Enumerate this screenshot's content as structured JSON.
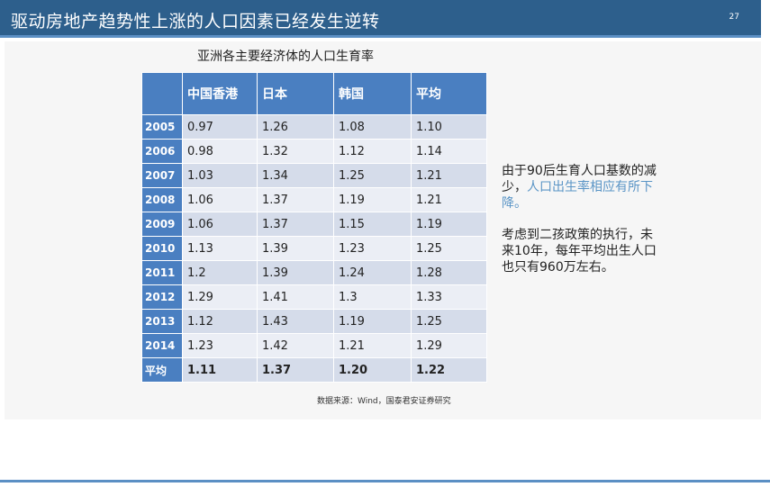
{
  "slide": {
    "title": "驱动房地产趋势性上涨的人口因素已经发生逆转",
    "page_number": "27"
  },
  "table": {
    "title": "亚洲各主要经济体的人口生育率",
    "headers": [
      "中国香港",
      "日本",
      "韩国",
      "平均"
    ],
    "rows": [
      {
        "year": "2005",
        "values": [
          "0.97",
          "1.26",
          "1.08",
          "1.10"
        ]
      },
      {
        "year": "2006",
        "values": [
          "0.98",
          "1.32",
          "1.12",
          "1.14"
        ]
      },
      {
        "year": "2007",
        "values": [
          "1.03",
          "1.34",
          "1.25",
          "1.21"
        ]
      },
      {
        "year": "2008",
        "values": [
          "1.06",
          "1.37",
          "1.19",
          "1.21"
        ]
      },
      {
        "year": "2009",
        "values": [
          "1.06",
          "1.37",
          "1.15",
          "1.19"
        ]
      },
      {
        "year": "2010",
        "values": [
          "1.13",
          "1.39",
          "1.23",
          "1.25"
        ]
      },
      {
        "year": "2011",
        "values": [
          "1.2",
          "1.39",
          "1.24",
          "1.28"
        ]
      },
      {
        "year": "2012",
        "values": [
          "1.29",
          "1.41",
          "1.3",
          "1.33"
        ]
      },
      {
        "year": "2013",
        "values": [
          "1.12",
          "1.43",
          "1.19",
          "1.25"
        ]
      },
      {
        "year": "2014",
        "values": [
          "1.23",
          "1.42",
          "1.21",
          "1.29"
        ]
      }
    ],
    "avg_row": {
      "year": "平均",
      "values": [
        "1.11",
        "1.37",
        "1.20",
        "1.22"
      ]
    },
    "source": "数据来源：Wind，国泰君安证券研究"
  },
  "side_text": {
    "p1_plain": "由于90后生育人口基数的减少，",
    "p1_highlight": "人口出生率相应有所下降。",
    "p2": "考虑到二孩政策的执行，未来10年，每年平均出生人口也只有960万左右。"
  },
  "colors": {
    "header_bar": "#2d5f8c",
    "table_header": "#4a7fc1",
    "row_dark": "#d5dcea",
    "row_light": "#ebeef5",
    "highlight_text": "#5b95c6"
  }
}
